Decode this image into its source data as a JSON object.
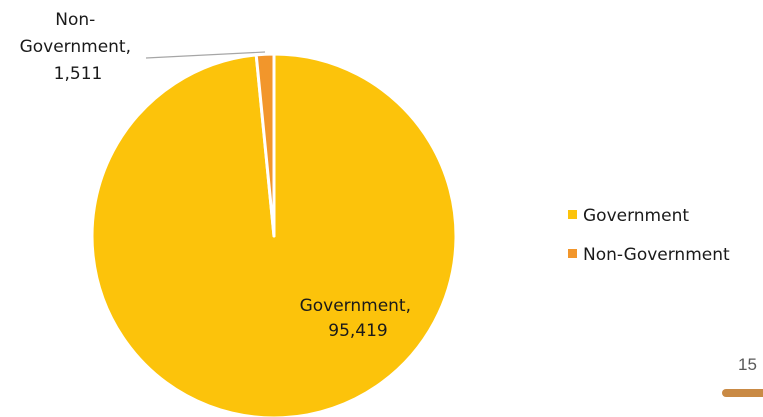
{
  "chart_data": {
    "type": "pie",
    "title": "",
    "slices": [
      {
        "category": "Government",
        "value": 95419,
        "value_label": "95,419",
        "color": "#fcc30b"
      },
      {
        "category": "Non-Government",
        "value": 1511,
        "value_label": "1,511",
        "color": "#f2962b"
      }
    ],
    "data_labels": [
      {
        "lines": [
          "Government,",
          "95,419"
        ]
      },
      {
        "lines": [
          "Non-",
          "Government,",
          "1,511"
        ]
      }
    ],
    "legend": {
      "placement": "right",
      "entries": [
        "Government",
        "Non-Government"
      ]
    }
  },
  "page": {
    "number": "15",
    "accent_color": "#c98a45"
  }
}
